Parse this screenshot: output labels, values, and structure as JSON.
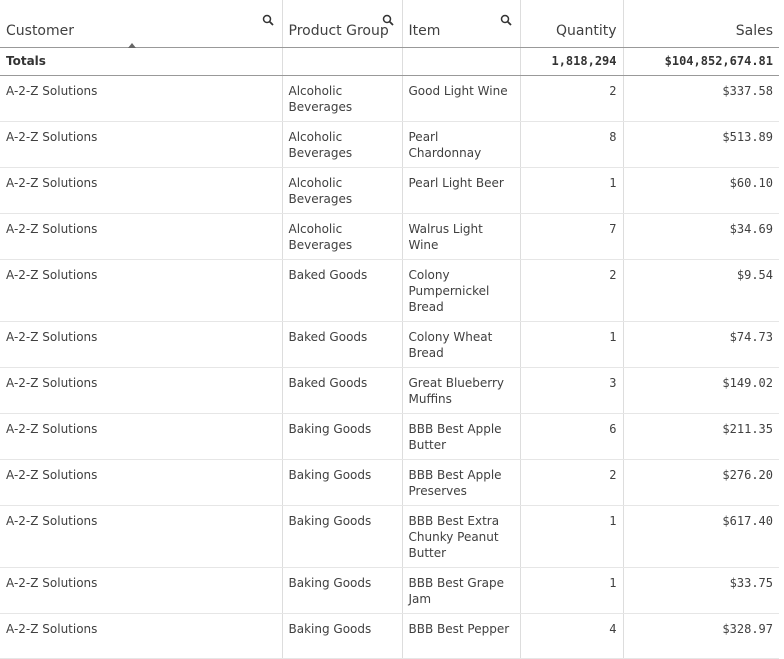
{
  "headers": {
    "customer": "Customer",
    "product_group": "Product Group",
    "item": "Item",
    "quantity": "Quantity",
    "sales": "Sales"
  },
  "totals": {
    "label": "Totals",
    "quantity": "1,818,294",
    "sales": "$104,852,674.81"
  },
  "rows": [
    {
      "customer": "A-2-Z Solutions",
      "group": "Alcoholic Beverages",
      "item": "Good Light Wine",
      "qty": "2",
      "sales": "$337.58"
    },
    {
      "customer": "A-2-Z Solutions",
      "group": "Alcoholic Beverages",
      "item": "Pearl Chardonnay",
      "qty": "8",
      "sales": "$513.89"
    },
    {
      "customer": "A-2-Z Solutions",
      "group": "Alcoholic Beverages",
      "item": "Pearl Light Beer",
      "qty": "1",
      "sales": "$60.10"
    },
    {
      "customer": "A-2-Z Solutions",
      "group": "Alcoholic Beverages",
      "item": "Walrus Light Wine",
      "qty": "7",
      "sales": "$34.69"
    },
    {
      "customer": "A-2-Z Solutions",
      "group": "Baked Goods",
      "item": "Colony Pumpernickel Bread",
      "qty": "2",
      "sales": "$9.54"
    },
    {
      "customer": "A-2-Z Solutions",
      "group": "Baked Goods",
      "item": "Colony Wheat Bread",
      "qty": "1",
      "sales": "$74.73"
    },
    {
      "customer": "A-2-Z Solutions",
      "group": "Baked Goods",
      "item": "Great Blueberry Muffins",
      "qty": "3",
      "sales": "$149.02"
    },
    {
      "customer": "A-2-Z Solutions",
      "group": "Baking Goods",
      "item": "BBB Best Apple Butter",
      "qty": "6",
      "sales": "$211.35"
    },
    {
      "customer": "A-2-Z Solutions",
      "group": "Baking Goods",
      "item": "BBB Best Apple Preserves",
      "qty": "2",
      "sales": "$276.20"
    },
    {
      "customer": "A-2-Z Solutions",
      "group": "Baking Goods",
      "item": "BBB Best Extra Chunky Peanut Butter",
      "qty": "1",
      "sales": "$617.40"
    },
    {
      "customer": "A-2-Z Solutions",
      "group": "Baking Goods",
      "item": "BBB Best Grape Jam",
      "qty": "1",
      "sales": "$33.75"
    },
    {
      "customer": "A-2-Z Solutions",
      "group": "Baking Goods",
      "item": "BBB Best Pepper",
      "qty": "4",
      "sales": "$328.97"
    }
  ]
}
